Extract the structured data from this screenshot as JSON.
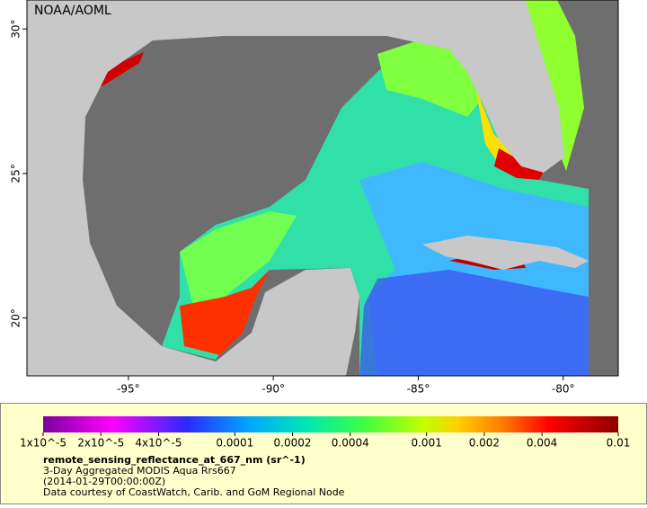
{
  "map": {
    "credit": "NOAA/AOML",
    "xlim": [
      -98.5,
      -78.1
    ],
    "ylim": [
      18,
      31
    ],
    "xticks": [
      {
        "value": -95,
        "label": "-95°"
      },
      {
        "value": -90,
        "label": "-90°"
      },
      {
        "value": -85,
        "label": "-85°"
      },
      {
        "value": -80,
        "label": "-80°"
      }
    ],
    "yticks": [
      {
        "value": 20,
        "label": "20°"
      },
      {
        "value": 25,
        "label": "25°"
      },
      {
        "value": 30,
        "label": "30°"
      }
    ]
  },
  "colorbar": {
    "title": "remote_sensing_reflectance_at_667_nm (sr^-1)",
    "lim": [
      1e-05,
      0.01
    ],
    "log": true,
    "ticks": [
      {
        "value": 1e-05,
        "label": "1x10^-5"
      },
      {
        "value": 2e-05,
        "label": "2x10^-5"
      },
      {
        "value": 4e-05,
        "label": "4x10^-5"
      },
      0.0001,
      0.0002,
      0.0004,
      0.001,
      0.002,
      0.004,
      0.01
    ]
  },
  "notes": [
    "3-Day Aggregated MODIS Aqua Rrs667",
    "(2014-01-29T00:00:00Z)",
    "Data courtesy of CoastWatch, Carib. and GoM Regional Node"
  ]
}
